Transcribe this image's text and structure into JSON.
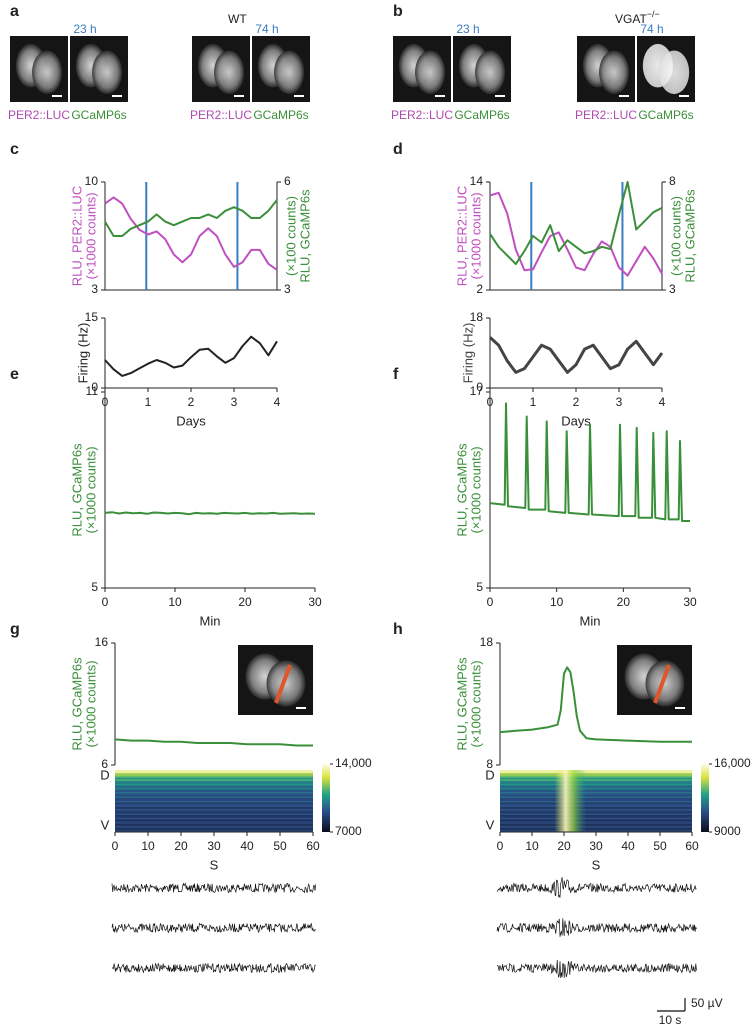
{
  "images": {
    "a": {
      "panel": "a",
      "genotype": "WT",
      "times": [
        "23 h",
        "74 h"
      ],
      "channels": [
        "PER2::LUC",
        "GCaMP6s"
      ]
    },
    "b": {
      "panel": "b",
      "genotype": "VGAT",
      "genotype_superscript": "−/−",
      "times": [
        "23 h",
        "74 h"
      ],
      "channels": [
        "PER2::LUC",
        "GCaMP6s"
      ]
    }
  },
  "chart_data": [
    {
      "type": "line",
      "panel": "c",
      "ylabel": [
        "RLU, PER2::LUC",
        "(×1000 counts)"
      ],
      "y2label": [
        "RLU, GCaMP6s",
        "(×100 counts)"
      ],
      "xlim": [
        0,
        4
      ],
      "ylim": [
        3,
        10
      ],
      "yticks": [
        3,
        10
      ],
      "y2lim": [
        3,
        6
      ],
      "y2ticks": [
        3,
        6
      ],
      "marker_x": [
        0.96,
        3.08
      ],
      "marker_color": "#3a7cc0",
      "x": [
        0,
        0.2,
        0.4,
        0.6,
        0.8,
        1,
        1.2,
        1.4,
        1.6,
        1.8,
        2,
        2.2,
        2.4,
        2.6,
        2.8,
        3,
        3.2,
        3.4,
        3.6,
        3.8,
        4
      ],
      "series": [
        {
          "color": "#c04fc0",
          "values": [
            8.6,
            9.0,
            8.6,
            7.6,
            6.9,
            6.6,
            6.8,
            6.3,
            5.3,
            4.8,
            5.3,
            6.5,
            7.0,
            6.5,
            5.3,
            4.5,
            4.8,
            5.6,
            5.6,
            4.7,
            4.3
          ]
        },
        {
          "color": "#3a8f3a",
          "axis": "y2",
          "values": [
            4.9,
            4.5,
            4.5,
            4.7,
            4.8,
            4.9,
            5.1,
            4.9,
            4.8,
            4.9,
            5.0,
            5.0,
            5.1,
            5.0,
            5.2,
            5.3,
            5.2,
            5.0,
            5.0,
            5.2,
            5.5
          ]
        }
      ]
    },
    {
      "type": "line",
      "ylabel": [
        "Firing (Hz)"
      ],
      "xlabel": "Days",
      "xlim": [
        0,
        4
      ],
      "xticks": [
        0,
        1,
        2,
        3,
        4
      ],
      "ylim": [
        0,
        15
      ],
      "yticks": [
        0,
        15
      ],
      "x": [
        0,
        0.2,
        0.4,
        0.6,
        0.8,
        1,
        1.2,
        1.4,
        1.6,
        1.8,
        2,
        2.2,
        2.4,
        2.6,
        2.8,
        3,
        3.2,
        3.4,
        3.6,
        3.8,
        4
      ],
      "series": [
        {
          "color": "#222222",
          "values": [
            6,
            4,
            2.6,
            3.2,
            4.2,
            5.2,
            6,
            5.4,
            4.4,
            4.8,
            6.6,
            8.2,
            8.4,
            6.8,
            5.4,
            6.4,
            9,
            11,
            9.6,
            7,
            10
          ]
        }
      ]
    },
    {
      "type": "line",
      "panel": "d",
      "ylabel": [
        "RLU, PER2::LUC",
        "(×1000 counts)"
      ],
      "y2label": [
        "RLU, GCaMP6s",
        "(×100 counts)"
      ],
      "xlim": [
        0,
        4
      ],
      "ylim": [
        2,
        14
      ],
      "yticks": [
        2,
        14
      ],
      "y2lim": [
        3,
        8
      ],
      "y2ticks": [
        3,
        8
      ],
      "marker_x": [
        0.96,
        3.08
      ],
      "marker_color": "#3a7cc0",
      "x": [
        0,
        0.2,
        0.4,
        0.6,
        0.8,
        1,
        1.2,
        1.4,
        1.6,
        1.8,
        2,
        2.2,
        2.4,
        2.6,
        2.8,
        3,
        3.2,
        3.4,
        3.6,
        3.8,
        4
      ],
      "series": [
        {
          "color": "#c04fc0",
          "values": [
            12.5,
            12.8,
            10.5,
            6.5,
            4.2,
            4.3,
            6.2,
            8.0,
            8.4,
            6.5,
            4.5,
            4.2,
            6.0,
            7.4,
            6.8,
            4.5,
            3.6,
            5.2,
            6.8,
            5.5,
            3.8
          ]
        },
        {
          "color": "#3a8f3a",
          "axis": "y2",
          "values": [
            5.6,
            5.0,
            4.6,
            4.2,
            4.8,
            5.5,
            5.2,
            6.0,
            4.8,
            5.3,
            5.0,
            4.7,
            4.8,
            5.0,
            4.9,
            6.5,
            8.0,
            5.8,
            6.2,
            6.6,
            6.8
          ]
        }
      ]
    },
    {
      "type": "line",
      "ylabel": [
        "Firing (Hz)"
      ],
      "xlabel": "Days",
      "xlim": [
        0,
        4
      ],
      "xticks": [
        0,
        1,
        2,
        3,
        4
      ],
      "ylim": [
        0,
        18
      ],
      "yticks": [
        0,
        18
      ],
      "x": [
        0,
        0.2,
        0.4,
        0.6,
        0.8,
        1,
        1.2,
        1.4,
        1.6,
        1.8,
        2,
        2.2,
        2.4,
        2.6,
        2.8,
        3,
        3.2,
        3.4,
        3.6,
        3.8,
        4
      ],
      "series": [
        {
          "color": "#444444",
          "values": [
            13,
            11,
            7,
            4,
            5,
            8,
            11,
            10,
            7,
            4,
            6,
            10,
            11,
            8,
            5,
            6,
            10,
            12,
            9,
            6,
            9
          ]
        }
      ]
    },
    {
      "type": "line",
      "panel": "e",
      "ylabel": [
        "RLU, GCaMP6s",
        "(×1000 counts)"
      ],
      "xlabel": "Min",
      "xlim": [
        0,
        30
      ],
      "xticks": [
        0,
        10,
        20,
        30
      ],
      "ylim": [
        5,
        11
      ],
      "yticks": [
        5,
        11
      ],
      "x": [
        0,
        1,
        2,
        3,
        4,
        5,
        6,
        7,
        8,
        9,
        10,
        11,
        12,
        13,
        14,
        15,
        16,
        17,
        18,
        19,
        20,
        21,
        22,
        23,
        24,
        25,
        26,
        27,
        28,
        29,
        30
      ],
      "series": [
        {
          "color": "#3a8f3a",
          "values": [
            7.3,
            7.32,
            7.28,
            7.31,
            7.29,
            7.3,
            7.27,
            7.31,
            7.3,
            7.28,
            7.3,
            7.29,
            7.26,
            7.3,
            7.28,
            7.29,
            7.27,
            7.3,
            7.29,
            7.28,
            7.3,
            7.27,
            7.29,
            7.28,
            7.3,
            7.27,
            7.28,
            7.29,
            7.27,
            7.28,
            7.27
          ]
        }
      ]
    },
    {
      "type": "line",
      "panel": "f",
      "ylabel": [
        "RLU, GCaMP6s",
        "(×1000 counts)"
      ],
      "xlabel": "Min",
      "xlim": [
        0,
        30
      ],
      "xticks": [
        0,
        10,
        20,
        30
      ],
      "ylim": [
        5,
        17
      ],
      "yticks": [
        5,
        17
      ],
      "x": [
        0,
        2.2,
        2.4,
        2.7,
        5.3,
        5.5,
        5.8,
        8.3,
        8.5,
        8.8,
        11.3,
        11.5,
        11.8,
        14.8,
        15,
        15.3,
        19.3,
        19.5,
        19.8,
        21.8,
        22,
        22.3,
        24.3,
        24.5,
        24.8,
        26.3,
        26.5,
        26.8,
        28.3,
        28.5,
        28.8,
        30
      ],
      "series": [
        {
          "color": "#3a8f3a",
          "values": [
            10.2,
            10.1,
            16.3,
            10.0,
            9.9,
            15.5,
            9.8,
            9.8,
            15.2,
            9.7,
            9.6,
            14.6,
            9.6,
            9.5,
            15.0,
            9.5,
            9.4,
            15.0,
            9.4,
            9.4,
            14.8,
            9.3,
            9.3,
            14.5,
            9.3,
            9.2,
            14.6,
            9.2,
            9.2,
            14.0,
            9.1,
            9.1
          ]
        }
      ]
    },
    {
      "type": "line",
      "panel": "g",
      "ylabel": [
        "RLU, GCaMP6s",
        "(×1000 counts)"
      ],
      "xlim": [
        0,
        60
      ],
      "ylim": [
        6,
        16
      ],
      "yticks": [
        6,
        16
      ],
      "x": [
        0,
        5,
        10,
        15,
        20,
        25,
        30,
        35,
        40,
        45,
        50,
        55,
        60
      ],
      "series": [
        {
          "color": "#3a8f3a",
          "values": [
            8.1,
            8.0,
            8.0,
            7.9,
            7.9,
            7.8,
            7.8,
            7.8,
            7.7,
            7.7,
            7.7,
            7.6,
            7.6
          ]
        }
      ]
    },
    {
      "type": "heatmap",
      "ylabels": [
        "D",
        "V"
      ],
      "xlabel": "S",
      "xlim": [
        0,
        60
      ],
      "xticks": [
        0,
        10,
        20,
        30,
        40,
        50,
        60
      ],
      "clim": [
        7000,
        14000
      ],
      "cticks": [
        7000,
        {
          "value": 14000,
          "label": "14,000"
        }
      ]
    },
    {
      "type": "line",
      "panel": "h",
      "ylabel": [
        "RLU, GCaMP6s",
        "(×1000 counts)"
      ],
      "xlim": [
        0,
        60
      ],
      "ylim": [
        8,
        18
      ],
      "yticks": [
        8,
        18
      ],
      "x": [
        0,
        5,
        10,
        15,
        18,
        19,
        20,
        21,
        22,
        23,
        24,
        25,
        27,
        30,
        40,
        50,
        60
      ],
      "series": [
        {
          "color": "#3a8f3a",
          "values": [
            10.7,
            10.8,
            10.9,
            11.1,
            11.3,
            12.5,
            15.5,
            16.0,
            15.6,
            14.0,
            12.0,
            10.8,
            10.2,
            10.1,
            10.0,
            9.9,
            9.9
          ]
        }
      ]
    },
    {
      "type": "heatmap",
      "ylabels": [
        "D",
        "V"
      ],
      "xlabel": "S",
      "xlim": [
        0,
        60
      ],
      "xticks": [
        0,
        10,
        20,
        30,
        40,
        50,
        60
      ],
      "clim": [
        9000,
        16000
      ],
      "cticks": [
        9000,
        {
          "value": 16000,
          "label": "16,000"
        }
      ],
      "burst": [
        17,
        27
      ]
    }
  ],
  "scale_bar": {
    "time": "10 s",
    "voltage": "50 µV"
  }
}
